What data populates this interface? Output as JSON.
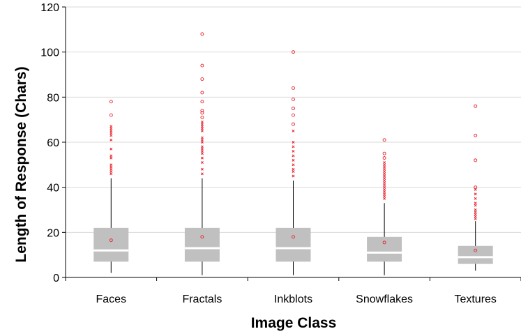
{
  "chart_data": {
    "type": "box",
    "xlabel": "Image Class",
    "ylabel": "Length of Response (Chars)",
    "ylim": [
      0,
      120
    ],
    "yticks": [
      0,
      20,
      40,
      60,
      80,
      100,
      120
    ],
    "grid": true,
    "categories": [
      "Faces",
      "Fractals",
      "Inkblots",
      "Snowflakes",
      "Textures"
    ],
    "box_color": "#c0c0c0",
    "median_color": "#ffffff",
    "outlier_color": "#e8202a",
    "boxes": [
      {
        "category": "Faces",
        "min": 2,
        "q1": 7,
        "median": 12,
        "q3": 22,
        "max": 44,
        "mean": 16.5,
        "outliers_x": [
          46,
          47,
          48,
          49,
          50,
          53,
          54,
          57,
          61,
          63,
          64,
          65,
          66,
          67
        ],
        "outliers_o": [
          72,
          78
        ]
      },
      {
        "category": "Fractals",
        "min": 1,
        "q1": 7,
        "median": 13,
        "q3": 22,
        "max": 44,
        "mean": 18,
        "outliers_x": [
          46,
          48,
          51,
          53,
          55,
          56,
          57,
          58,
          60,
          61,
          62,
          65,
          66,
          67,
          68,
          69
        ],
        "outliers_o": [
          71,
          73,
          74,
          78,
          82,
          88,
          94,
          108
        ]
      },
      {
        "category": "Inkblots",
        "min": 1,
        "q1": 7,
        "median": 13,
        "q3": 22,
        "max": 43,
        "mean": 18,
        "outliers_x": [
          45,
          47,
          48,
          50,
          52,
          54,
          56,
          58,
          60,
          65
        ],
        "outliers_o": [
          68,
          72,
          75,
          79,
          84,
          100
        ]
      },
      {
        "category": "Snowflakes",
        "min": 1,
        "q1": 7,
        "median": 11,
        "q3": 18,
        "max": 33,
        "mean": 15.5,
        "outliers_x": [
          35,
          36,
          37,
          38,
          39,
          40,
          41,
          42,
          43,
          44,
          45,
          46,
          47,
          48,
          49,
          50,
          51
        ],
        "outliers_o": [
          53,
          55,
          61
        ]
      },
      {
        "category": "Textures",
        "min": 3,
        "q1": 6,
        "median": 9,
        "q3": 14,
        "max": 25,
        "mean": 12,
        "outliers_x": [
          26,
          27,
          28,
          29,
          30,
          32,
          33,
          35,
          37,
          39
        ],
        "outliers_o": [
          40,
          52,
          63,
          76
        ]
      }
    ]
  }
}
